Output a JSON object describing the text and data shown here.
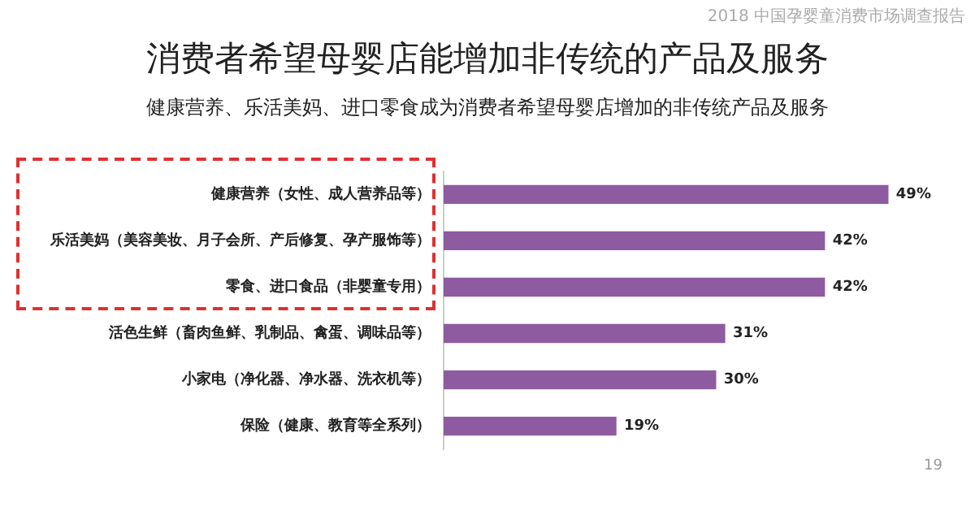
{
  "chart_data": {
    "type": "bar",
    "orientation": "horizontal",
    "title": "消费者希望母婴店能增加非传统的产品及服务",
    "subtitle": "健康营养、乐活美妈、进口零食成为消费者希望母婴店增加的非传统产品及服务",
    "categories": [
      "健康营养（女性、成人营养品等）",
      "乐活美妈（美容美妆、月子会所、产后修复、孕产服饰等）",
      "零食、进口食品（非婴童专用）",
      "活色生鲜（畜肉鱼鲜、乳制品、禽蛋、调味品等）",
      "小家电（净化器、净水器、洗衣机等）",
      "保险（健康、教育等全系列）"
    ],
    "values": [
      49,
      42,
      42,
      31,
      30,
      19
    ],
    "value_labels": [
      "49%",
      "42%",
      "42%",
      "31%",
      "30%",
      "19%"
    ],
    "color": "#8e5ba0",
    "grid": false,
    "legend": false,
    "tick_labels": "y",
    "annotations": [
      "2018 中国孕婴童消费市场调查报告",
      "19"
    ]
  }
}
